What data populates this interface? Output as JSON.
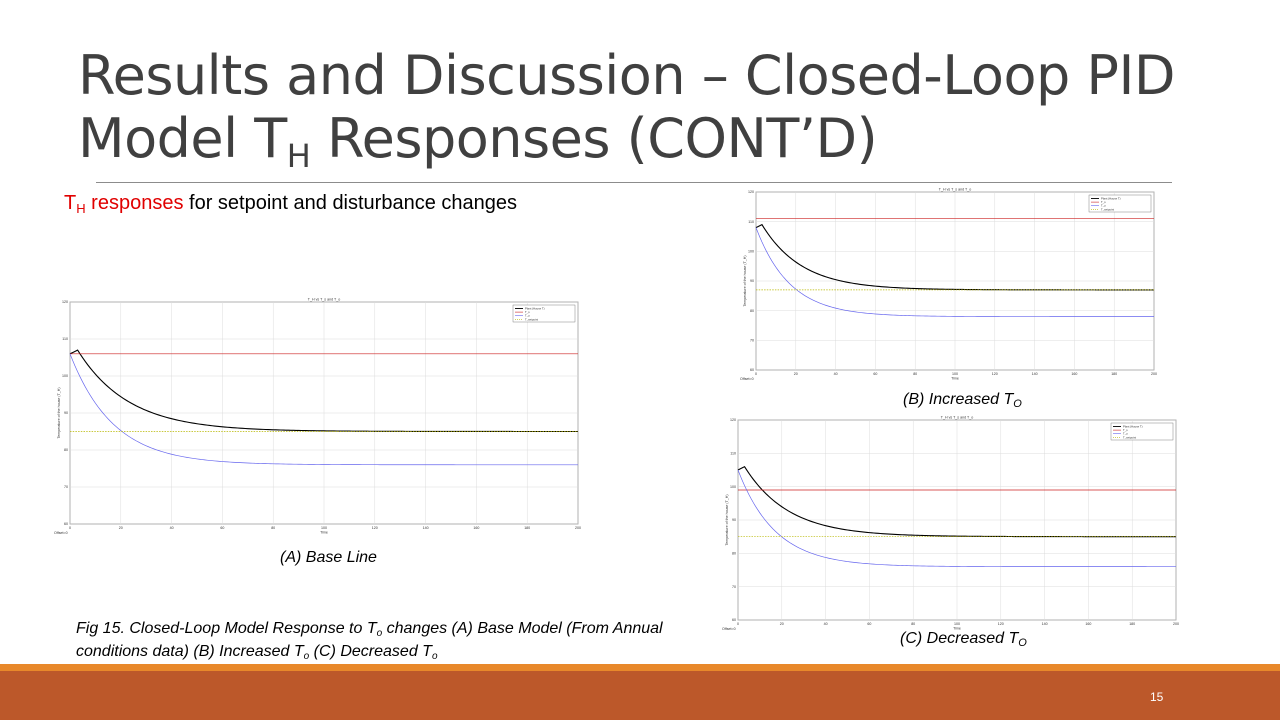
{
  "slide": {
    "title_line1": "Results and Discussion – Closed-Loop PID",
    "title_line2_pre": "Model T",
    "title_line2_sub": "H",
    "title_line2_post": " Responses (CONT’D)",
    "subtitle_T": "T",
    "subtitle_sub": "H",
    "subtitle_red": " responses",
    "subtitle_rest": " for setpoint and disturbance changes",
    "caption_a": "(A) Base Line",
    "caption_b_pre": "(B) Increased T",
    "caption_b_sub": "O",
    "caption_c_pre": "(C) Decreased T",
    "caption_c_sub": "O",
    "fig_caption_p1": "Fig 15. Closed-Loop Model Response to T",
    "fig_caption_s1": "o",
    "fig_caption_p2": " changes (A) Base Model (From Annual conditions data) (B) Increased T",
    "fig_caption_s2": "o",
    "fig_caption_p3": "  (C) Decreased T",
    "fig_caption_s3": "o",
    "page_number": "15",
    "colors": {
      "accent_red": "#e00000",
      "band_orange": "#e8882a",
      "band_brown": "#bc582a"
    }
  },
  "chart_data": [
    {
      "id": "A",
      "type": "line",
      "title": "T_H vs T_s and T_o",
      "xlabel": "Time",
      "ylabel": "Temperature of the house (T_H)",
      "xlim": [
        0,
        200
      ],
      "ylim": [
        60,
        120
      ],
      "xticks": [
        0,
        20,
        40,
        60,
        80,
        100,
        120,
        140,
        160,
        180,
        200
      ],
      "yticks": [
        60,
        70,
        80,
        90,
        100,
        110,
        120
      ],
      "offset_label": "Offset=0",
      "grid": true,
      "legend_position": "top-right",
      "series": [
        {
          "name": "Plant (House T)",
          "color": "#000000",
          "kind": "plant",
          "start": 106,
          "peak": 107,
          "peak_t": 3,
          "final": 85
        },
        {
          "name": "T_s",
          "color": "#cc2222",
          "kind": "const",
          "value": 106
        },
        {
          "name": "T_o",
          "color": "#6666ee",
          "kind": "decay",
          "start": 106,
          "final": 76
        },
        {
          "name": "T_setpoint",
          "color": "#b8b800",
          "kind": "dotted",
          "value": 85
        }
      ]
    },
    {
      "id": "B",
      "type": "line",
      "title": "T_H vs T_s and T_o",
      "xlabel": "Time",
      "ylabel": "Temperature of the house (T_H)",
      "xlim": [
        0,
        200
      ],
      "ylim": [
        60,
        120
      ],
      "xticks": [
        0,
        20,
        40,
        60,
        80,
        100,
        120,
        140,
        160,
        180,
        200
      ],
      "yticks": [
        60,
        70,
        80,
        90,
        100,
        110,
        120
      ],
      "offset_label": "Offset=0",
      "grid": true,
      "legend_position": "top-right",
      "series": [
        {
          "name": "Plant (House T)",
          "color": "#000000",
          "kind": "plant",
          "start": 108,
          "peak": 109,
          "peak_t": 3,
          "final": 87
        },
        {
          "name": "T_s",
          "color": "#cc2222",
          "kind": "const",
          "value": 111
        },
        {
          "name": "T_o",
          "color": "#6666ee",
          "kind": "decay",
          "start": 108,
          "final": 78
        },
        {
          "name": "T_setpoint",
          "color": "#b8b800",
          "kind": "dotted",
          "value": 87
        }
      ]
    },
    {
      "id": "C",
      "type": "line",
      "title": "T_H vs T_s and T_o",
      "xlabel": "Time",
      "ylabel": "Temperature of the house (T_H)",
      "xlim": [
        0,
        200
      ],
      "ylim": [
        60,
        120
      ],
      "xticks": [
        0,
        20,
        40,
        60,
        80,
        100,
        120,
        140,
        160,
        180,
        200
      ],
      "yticks": [
        60,
        70,
        80,
        90,
        100,
        110,
        120
      ],
      "offset_label": "Offset=0",
      "grid": true,
      "legend_position": "top-right",
      "series": [
        {
          "name": "Plant (House T)",
          "color": "#000000",
          "kind": "plant",
          "start": 105,
          "peak": 106,
          "peak_t": 3,
          "final": 85
        },
        {
          "name": "T_s",
          "color": "#cc2222",
          "kind": "const",
          "value": 99
        },
        {
          "name": "T_o",
          "color": "#6666ee",
          "kind": "decay",
          "start": 105,
          "final": 76
        },
        {
          "name": "T_setpoint",
          "color": "#b8b800",
          "kind": "dotted",
          "value": 85
        }
      ]
    }
  ]
}
